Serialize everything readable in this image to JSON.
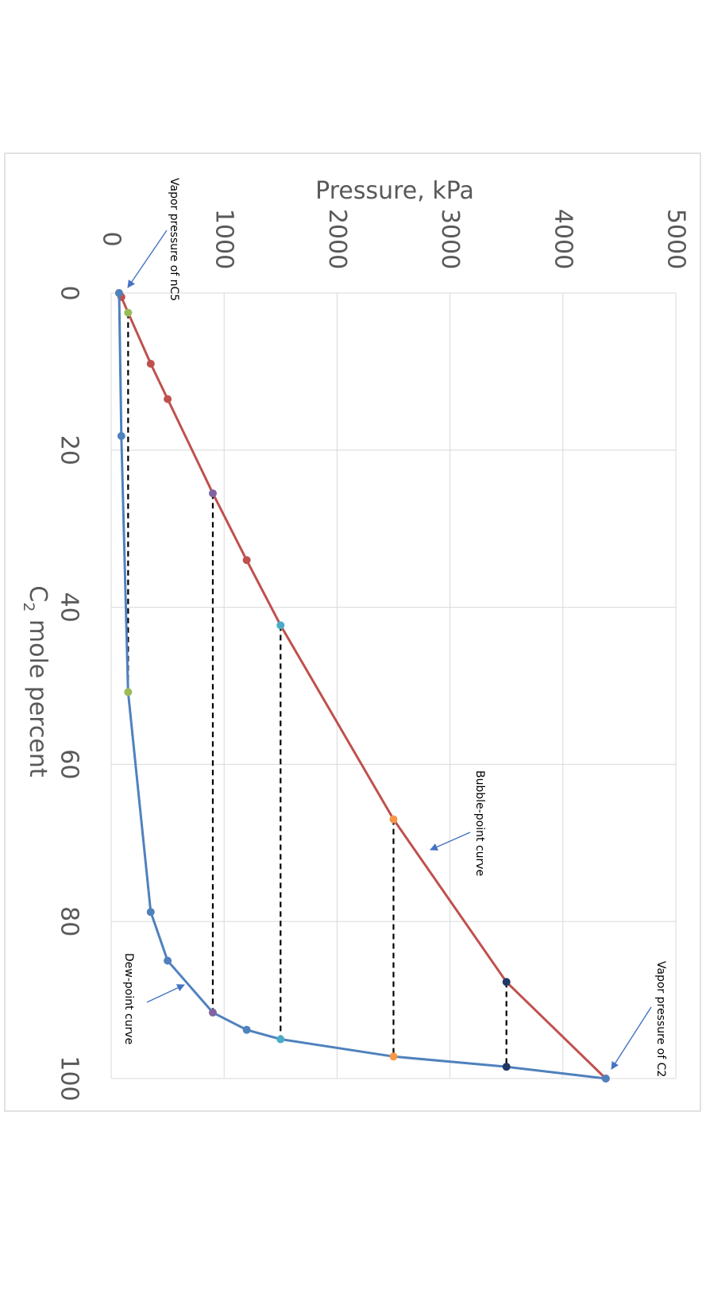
{
  "chart_data": {
    "type": "line",
    "title": "",
    "xlabel": "C",
    "xlabel_subscript": "2",
    "xlabel_rest": " mole percent",
    "ylabel": "Pressure, kPa",
    "xlim": [
      0,
      100
    ],
    "ylim": [
      0,
      5000
    ],
    "x_ticks": [
      "0",
      "20",
      "40",
      "60",
      "80",
      "100"
    ],
    "y_ticks": [
      "0",
      "1000",
      "2000",
      "3000",
      "4000",
      "5000"
    ],
    "grid": true,
    "legend": "none",
    "series": [
      {
        "key": "bubble",
        "color": "#c0504d",
        "points": [
          [
            0,
            70
          ],
          [
            0.5,
            90
          ],
          [
            2.5,
            150
          ],
          [
            9,
            350
          ],
          [
            13.5,
            500
          ],
          [
            25.5,
            900
          ],
          [
            34,
            1200
          ],
          [
            42.3,
            1500
          ],
          [
            67,
            2500
          ],
          [
            87.7,
            3500
          ],
          [
            100,
            4380
          ]
        ]
      },
      {
        "key": "dew",
        "color": "#4f81bd",
        "points": [
          [
            0,
            70
          ],
          [
            18.2,
            90
          ],
          [
            50.8,
            150
          ],
          [
            78.8,
            350
          ],
          [
            85,
            500
          ],
          [
            91.6,
            900
          ],
          [
            93.8,
            1200
          ],
          [
            95,
            1500
          ],
          [
            97.2,
            2500
          ],
          [
            98.5,
            3500
          ],
          [
            100,
            4380
          ]
        ]
      }
    ],
    "tie_lines": [
      {
        "pressure": 150,
        "x1": 2.5,
        "x2": 50.8,
        "color": "#9bbb59"
      },
      {
        "pressure": 900,
        "x1": 25.5,
        "x2": 91.6,
        "color": "#8064a2"
      },
      {
        "pressure": 1500,
        "x1": 42.3,
        "x2": 95,
        "color": "#4bacc6"
      },
      {
        "pressure": 2500,
        "x1": 67,
        "x2": 97.2,
        "color": "#f79646"
      },
      {
        "pressure": 3500,
        "x1": 87.7,
        "x2": 98.5,
        "color": "#1f3864"
      }
    ],
    "annotations": [
      {
        "key": "vp-nc5",
        "text": "Vapor pressure of nC5",
        "target": [
          0,
          70
        ]
      },
      {
        "key": "bubble-label",
        "text": "Bubble-point curve",
        "target": [
          71,
          2700
        ]
      },
      {
        "key": "dew-label",
        "text": "Dew-point curve",
        "target": [
          88,
          600
        ]
      },
      {
        "key": "vp-c2",
        "text": "Vapor pressure of C2",
        "target": [
          100,
          4380
        ]
      }
    ]
  }
}
